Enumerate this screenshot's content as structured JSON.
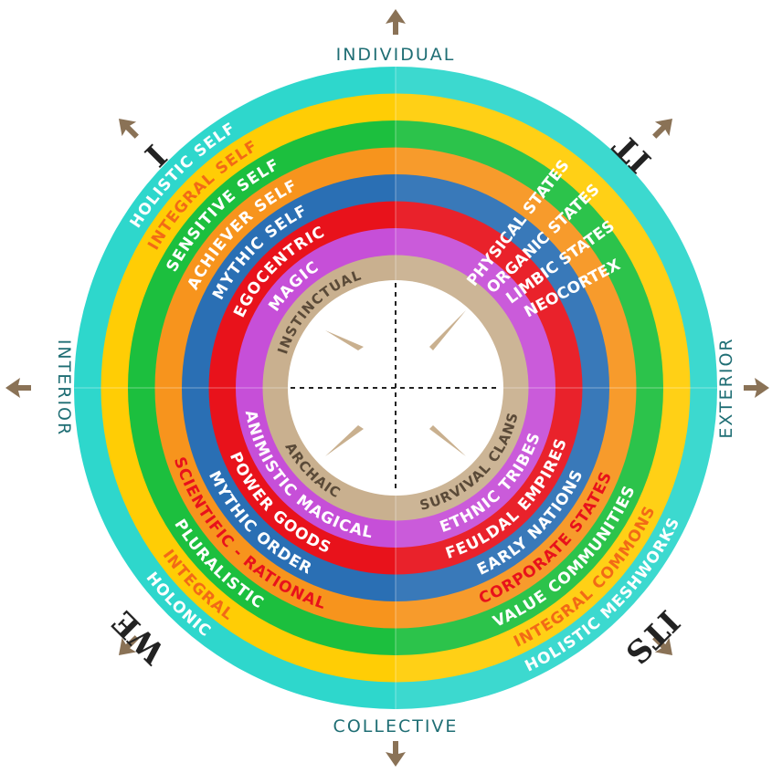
{
  "axes": {
    "top": "INDIVIDUAL",
    "bottom": "COLLECTIVE",
    "left": "INTERIOR",
    "right": "EXTERIOR"
  },
  "quadrants": {
    "upper_left": "I",
    "upper_right": "IT",
    "lower_left": "WE",
    "lower_right": "ITS"
  },
  "colors": {
    "turquoise": "#2ed7cc",
    "yellow": "#ffcd05",
    "green": "#1cbf3e",
    "orange": "#f7941d",
    "blue": "#2a6fb4",
    "red": "#e8121b",
    "purple": "#c64fd8",
    "beige": "#c9b08f",
    "arrow": "#8a7256"
  },
  "rings": [
    {
      "id": "turquoise",
      "ul": "HOLISTIC SELF",
      "ur": "",
      "ll": "HOLONIC",
      "lr": "HOLISTIC MESHWORKS"
    },
    {
      "id": "yellow",
      "ul": "INTEGRAL SELF",
      "ur": "",
      "ll": "INTEGRAL",
      "lr": "INTEGRAL COMMONS"
    },
    {
      "id": "green",
      "ul": "SENSITIVE SELF",
      "ur": "",
      "ll": "PLURALISTIC",
      "lr": "VALUE COMMUNITIES"
    },
    {
      "id": "orange",
      "ul": "ACHIEVER SELF",
      "ur": "",
      "ll": "SCIENTIFIC - RATIONAL",
      "lr": "CORPORATE STATES"
    },
    {
      "id": "blue",
      "ul": "MYTHIC SELF",
      "ur": "",
      "ll": "MYTHIC ORDER",
      "lr": "EARLY NATIONS"
    },
    {
      "id": "red",
      "ul": "EGOCENTRIC",
      "ur": "",
      "ll": "POWER GOODS",
      "lr": "FEULDAL EMPIRES"
    },
    {
      "id": "purple",
      "ul": "MAGIC",
      "ur": "",
      "ll": "ANIMISTIC MAGICAL",
      "lr": "ETHNIC TRIBES"
    },
    {
      "id": "beige",
      "ul": "INSTINCTUAL",
      "ur": "",
      "ll": "ARCHAIC",
      "lr": "SURVIVAL CLANS"
    }
  ],
  "upper_right_labels": [
    "PHYSICAL STATES",
    "ORGANIC STATES",
    "LIMBIC STATES",
    "NEOCORTEX"
  ]
}
